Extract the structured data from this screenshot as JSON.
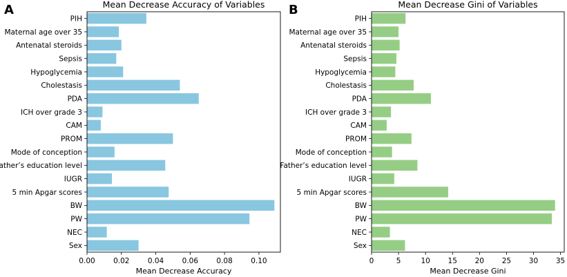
{
  "chart_data": [
    {
      "type": "bar",
      "orientation": "horizontal",
      "panel_label": "A",
      "title": "Mean Decrease Accuracy of Variables",
      "xlabel": "Mean Decrease Accuracy",
      "ylabel": "",
      "xlim": [
        0,
        0.1125
      ],
      "xticks": [
        0,
        0.02,
        0.04,
        0.06,
        0.08,
        0.1
      ],
      "xtick_labels": [
        "0.00",
        "0.02",
        "0.04",
        "0.06",
        "0.08",
        "0.10"
      ],
      "color": "#89c6e0",
      "categories": [
        "PIH",
        "Maternal age over 35",
        "Antenatal steroids",
        "Sepsis",
        "Hypoglycemia",
        "Cholestasis",
        "PDA",
        "ICH over grade 3",
        "CAM",
        "PROM",
        "Mode of conception",
        "Father’s education level",
        "IUGR",
        "5 min Apgar scores",
        "BW",
        "PW",
        "NEC",
        "Sex"
      ],
      "values": [
        0.0345,
        0.0185,
        0.02,
        0.017,
        0.021,
        0.054,
        0.065,
        0.009,
        0.008,
        0.05,
        0.016,
        0.0455,
        0.0145,
        0.0475,
        0.109,
        0.0945,
        0.0115,
        0.03
      ],
      "grid": false
    },
    {
      "type": "bar",
      "orientation": "horizontal",
      "panel_label": "B",
      "title": "Mean Decrease Gini of Variables",
      "xlabel": "Mean Decrease Gini",
      "ylabel": "",
      "xlim": [
        0,
        35.7
      ],
      "xticks": [
        0,
        5,
        10,
        15,
        20,
        25,
        30,
        35
      ],
      "xtick_labels": [
        "0",
        "5",
        "10",
        "15",
        "20",
        "25",
        "30",
        "35"
      ],
      "color": "#96cd85",
      "categories": [
        "PIH",
        "Maternal age over 35",
        "Antenatal steroids",
        "Sepsis",
        "Hypoglycemia",
        "Cholestasis",
        "PDA",
        "ICH over grade 3",
        "CAM",
        "PROM",
        "Mode of conception",
        "Father’s education level",
        "IUGR",
        "5 min Apgar scores",
        "BW",
        "PW",
        "NEC",
        "Sex"
      ],
      "values": [
        6.3,
        5.0,
        5.2,
        4.6,
        4.4,
        7.8,
        11.0,
        3.6,
        2.8,
        7.4,
        3.8,
        8.5,
        4.2,
        14.2,
        34.0,
        33.4,
        3.4,
        6.2
      ],
      "grid": false
    }
  ]
}
